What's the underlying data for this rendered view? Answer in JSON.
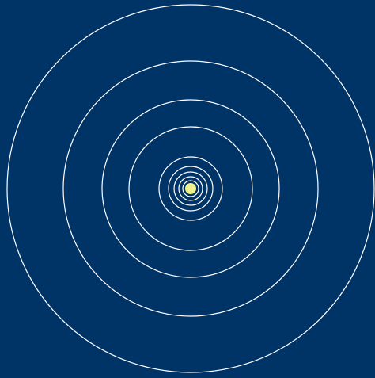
{
  "colors": {
    "background": "#003366",
    "orbit_stroke": "#ffffff",
    "center_body": "#f2f28c"
  },
  "diagram": {
    "orbit_count": 9,
    "has_center_body": true
  }
}
